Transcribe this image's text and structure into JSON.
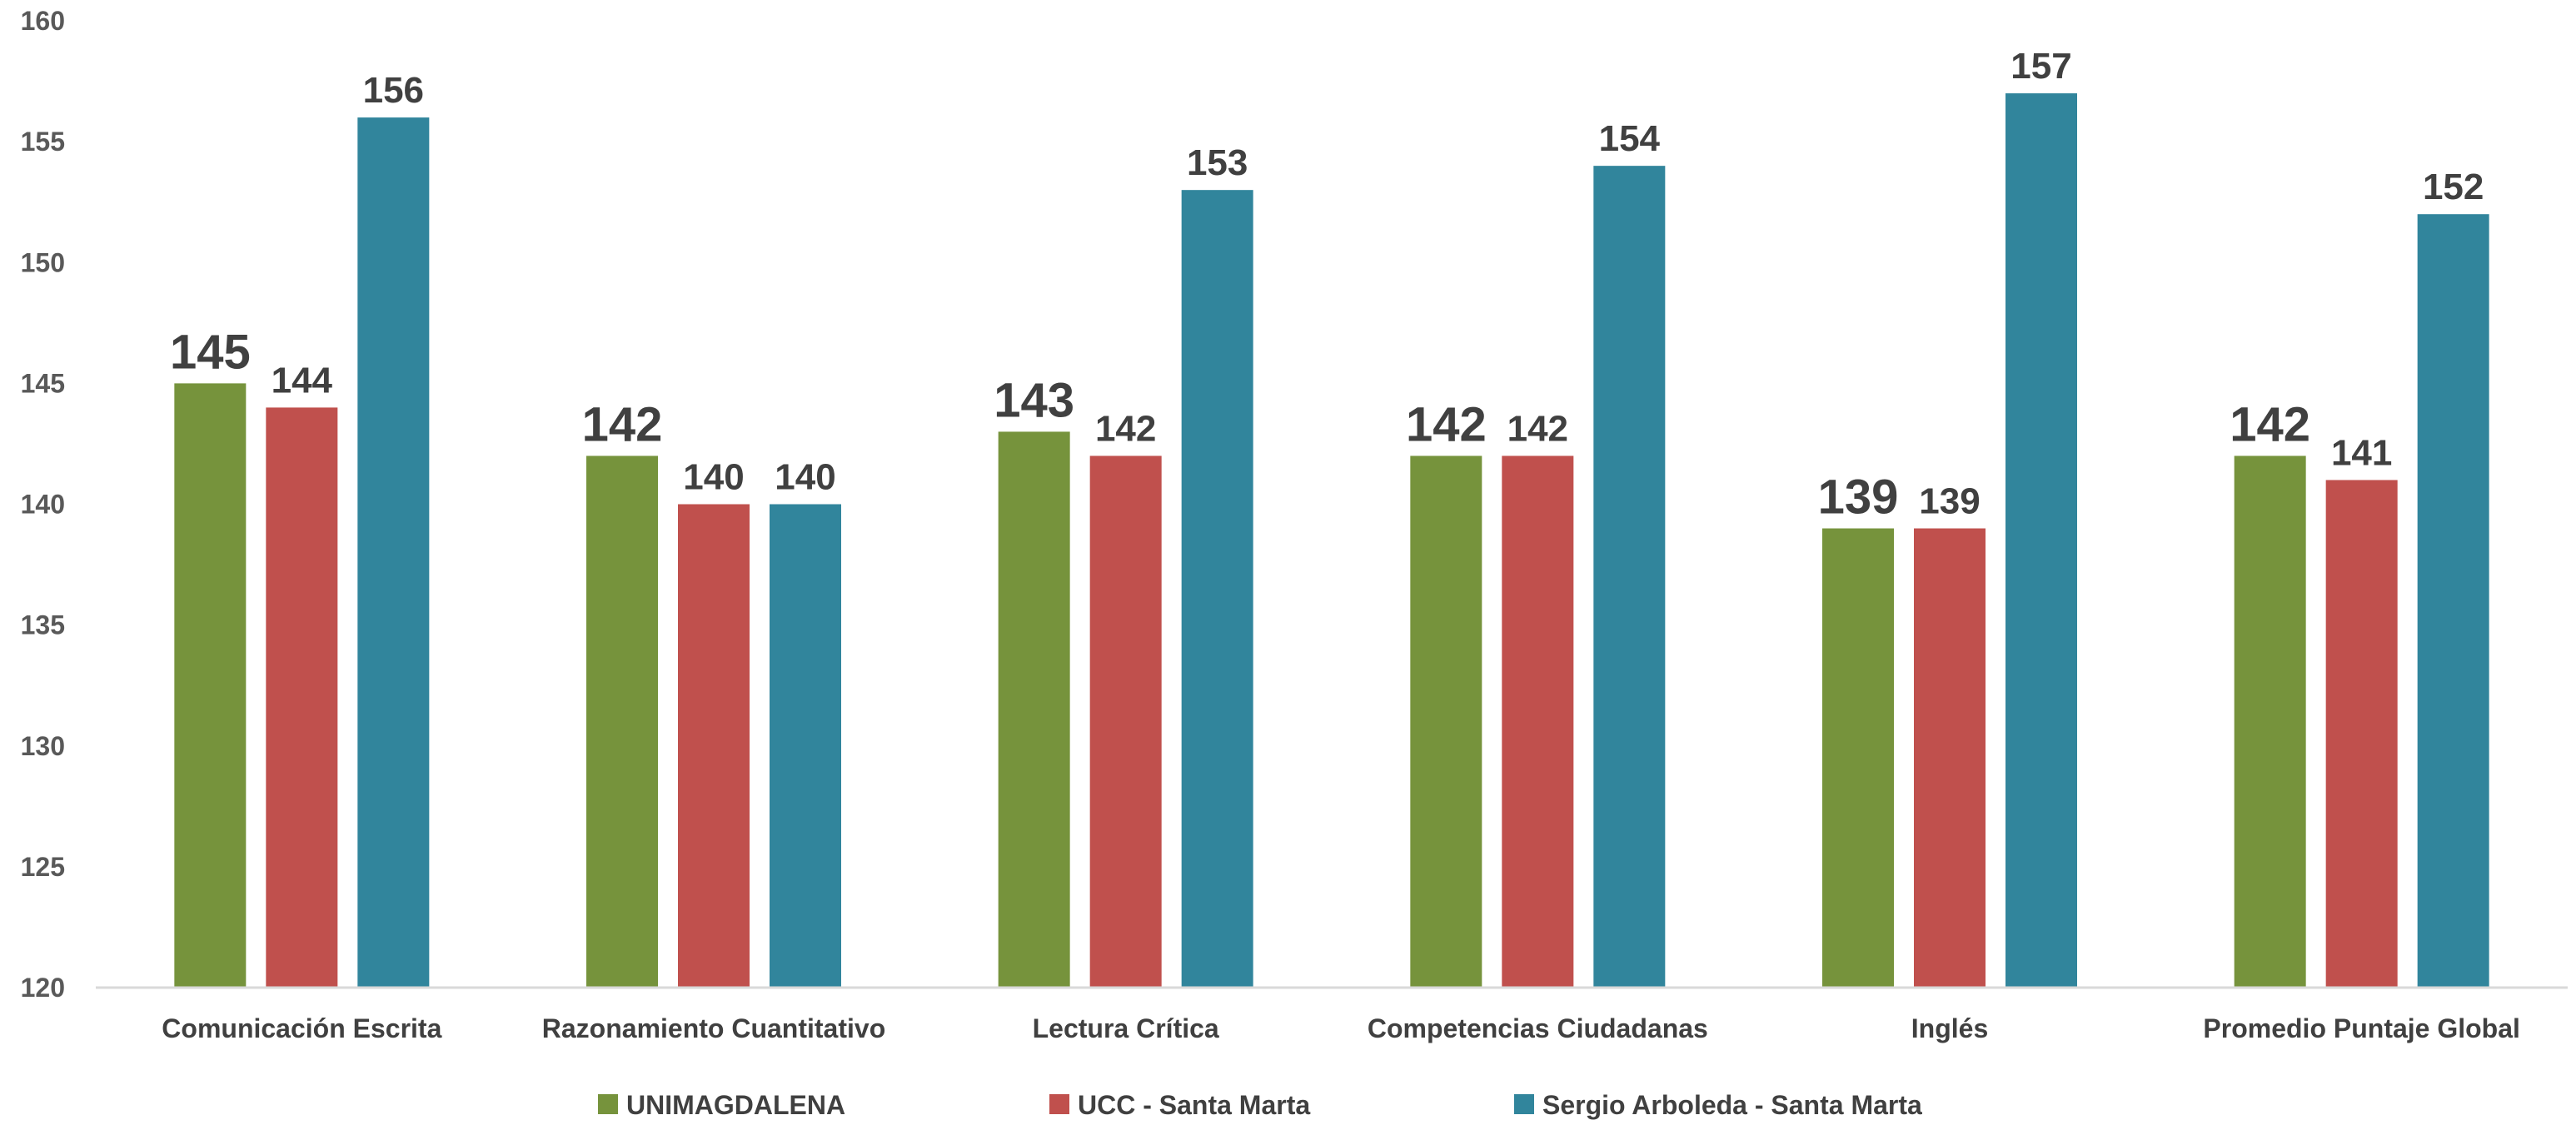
{
  "chart_data": {
    "type": "bar",
    "title": "",
    "xlabel": "",
    "ylabel": "",
    "ylim": [
      120,
      160
    ],
    "yticks": [
      120,
      125,
      130,
      135,
      140,
      145,
      150,
      155,
      160
    ],
    "grid": false,
    "legend_position": "bottom",
    "categories": [
      "Comunicación Escrita",
      "Razonamiento Cuantitativo",
      "Lectura Crítica",
      "Competencias Ciudadanas",
      "Inglés",
      "Promedio Puntaje Global"
    ],
    "series": [
      {
        "name": "UNIMAGDALENA",
        "color": "#76933c",
        "values": [
          145,
          142,
          143,
          142,
          139,
          142
        ]
      },
      {
        "name": "UCC - Santa Marta",
        "color": "#c0504d",
        "values": [
          144,
          140,
          142,
          142,
          139,
          141
        ]
      },
      {
        "name": "Sergio Arboleda - Santa Marta",
        "color": "#31859c",
        "values": [
          156,
          140,
          153,
          154,
          157,
          152
        ]
      }
    ]
  }
}
